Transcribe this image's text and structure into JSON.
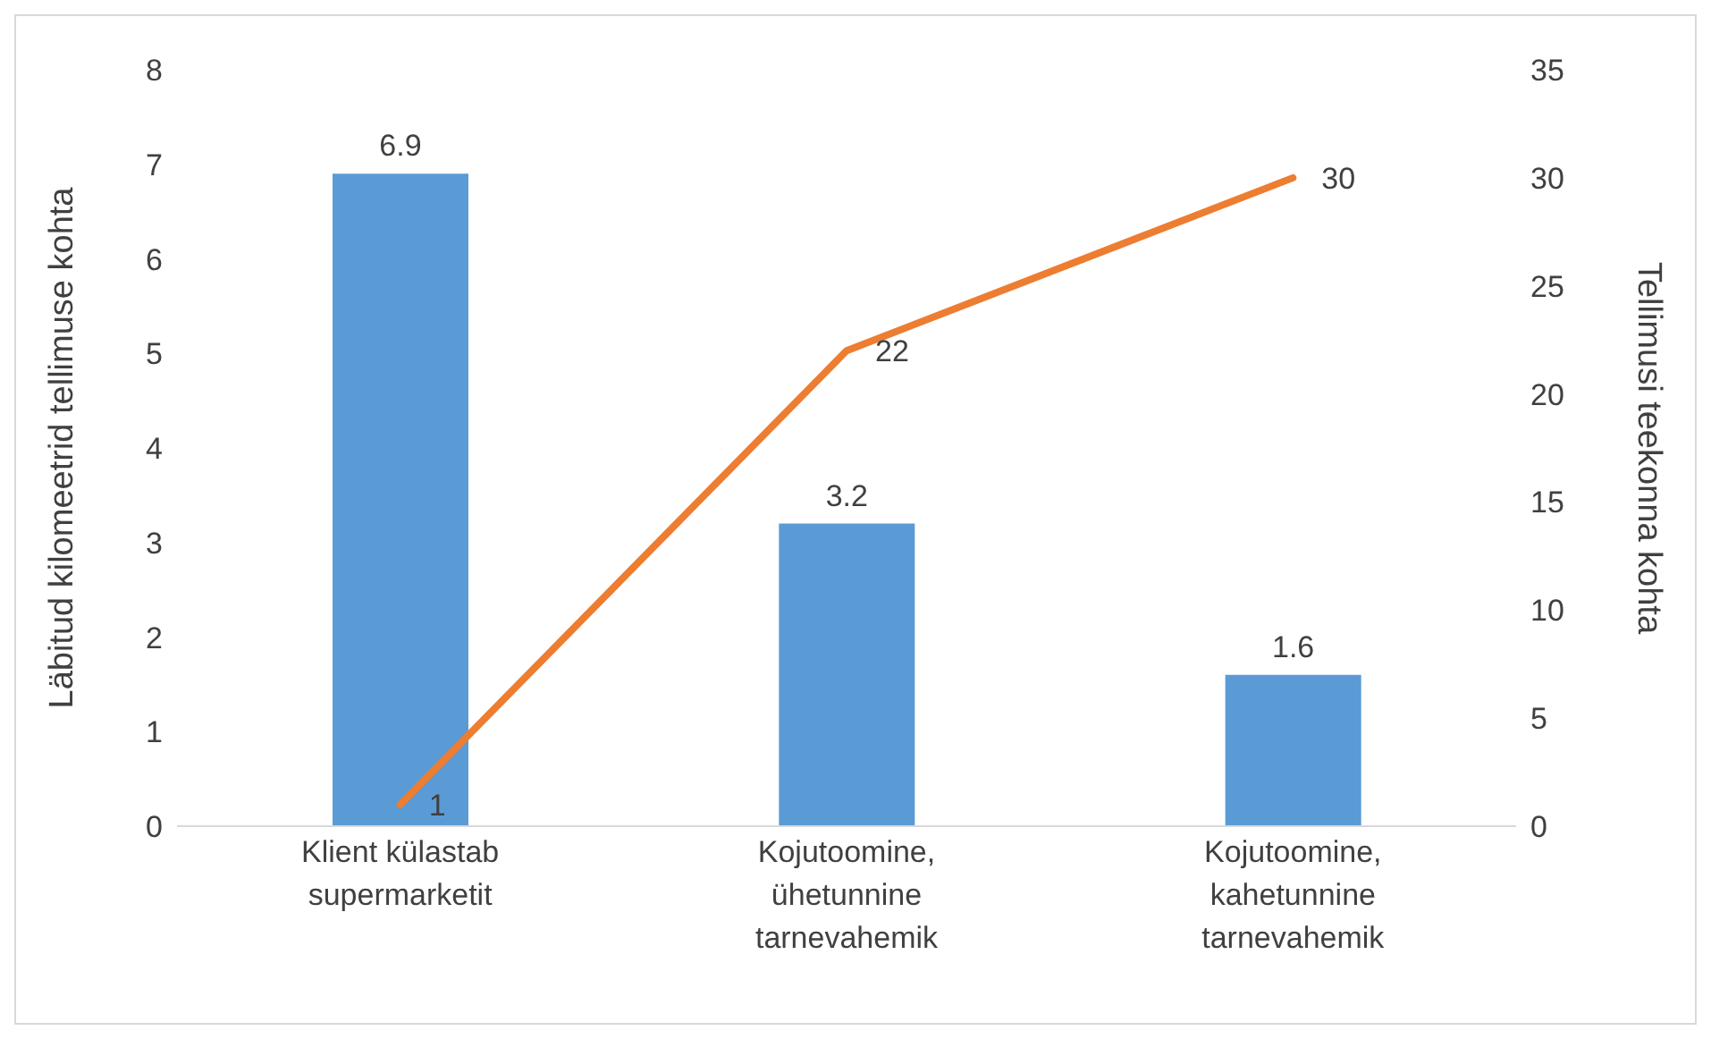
{
  "chart_data": {
    "type": "bar",
    "categories": [
      "Klient külastab supermarketit",
      "Kojutoomine, ühetunnine tarnevahemik",
      "Kojutoomine, kahetunnine tarnevahemik"
    ],
    "series": [
      {
        "color": "#5b9bd5",
        "values": [
          6.9,
          3.2,
          1.6
        ]
      },
      {
        "type": "line",
        "axis": "y2",
        "color": "#ed7d31",
        "values": [
          1,
          22,
          30
        ]
      }
    ],
    "ylabel": "Läbitud kilomeetrid tellimuse kohta",
    "y2label": "Tellimusi teekonna kohta",
    "ylim": [
      0,
      8
    ],
    "yticks": [
      0,
      1,
      2,
      3,
      4,
      5,
      6,
      7,
      8
    ],
    "y2lim": [
      0,
      35
    ],
    "y2ticks": [
      0,
      5,
      10,
      15,
      20,
      25,
      30,
      35
    ],
    "data_labels": true,
    "grid": false,
    "legend": false,
    "marker": "none",
    "line_style": "solid"
  }
}
